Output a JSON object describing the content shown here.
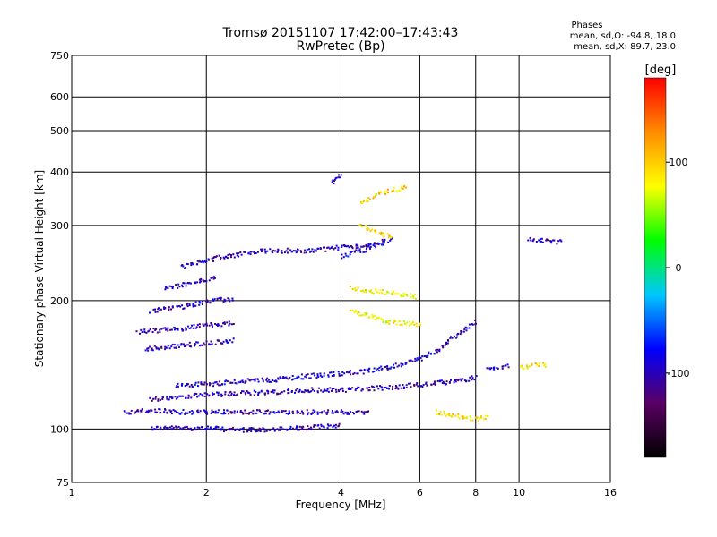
{
  "chart_data": {
    "type": "scatter",
    "title": "Tromsø 20151107 17:42:00–17:43:43",
    "subtitle": "RwPretec (Bp)",
    "xlabel": "Frequency [MHz]",
    "ylabel": "Stationary phase Virtual Height [km]",
    "x_scale": "log",
    "y_scale": "log",
    "xlim": [
      1,
      16
    ],
    "ylim": [
      75,
      750
    ],
    "x_ticks": [
      1,
      2,
      4,
      6,
      8,
      10,
      16
    ],
    "x_tick_labels": [
      "1",
      "2",
      "4",
      "6",
      "8",
      "10",
      "16"
    ],
    "y_ticks": [
      75,
      100,
      200,
      300,
      400,
      500,
      600,
      750
    ],
    "y_tick_labels": [
      "75",
      "100",
      "200",
      "300",
      "400",
      "500",
      "600",
      "750"
    ],
    "grid": true,
    "phase_info": {
      "heading": "Phases",
      "line_o": "mean, sd,O: -94.8, 18.0",
      "line_x": "mean, sd,X:  89.7, 23.0"
    },
    "colorbar": {
      "label": "[deg]",
      "range": [
        -180,
        180
      ],
      "ticks": [
        100,
        0,
        -100
      ],
      "tick_labels": [
        "100",
        "0",
        "-100"
      ],
      "stops": [
        "#000000",
        "#5a0064",
        "#0000ff",
        "#00c8ff",
        "#00ff00",
        "#ffff00",
        "#ff8c00",
        "#ff0000"
      ]
    },
    "traces": [
      {
        "phase": -100,
        "points": [
          [
            1.5,
            101
          ],
          [
            1.8,
            101
          ],
          [
            2.0,
            101
          ],
          [
            2.3,
            100
          ],
          [
            2.7,
            100
          ],
          [
            3.0,
            100.5
          ],
          [
            3.3,
            101
          ],
          [
            3.7,
            102
          ],
          [
            4.0,
            103
          ]
        ]
      },
      {
        "phase": -100,
        "points": [
          [
            1.3,
            110
          ],
          [
            1.5,
            111
          ],
          [
            1.8,
            110
          ],
          [
            2.0,
            110
          ],
          [
            2.3,
            110
          ],
          [
            2.8,
            110
          ],
          [
            3.2,
            110
          ],
          [
            3.8,
            110
          ],
          [
            4.2,
            110
          ],
          [
            4.6,
            110
          ]
        ]
      },
      {
        "phase": -100,
        "points": [
          [
            1.5,
            118
          ],
          [
            1.8,
            120
          ],
          [
            2.1,
            121
          ],
          [
            2.5,
            122
          ],
          [
            3.0,
            123
          ],
          [
            3.4,
            124
          ],
          [
            4.0,
            124
          ],
          [
            4.6,
            125
          ],
          [
            5.3,
            126
          ],
          [
            6.2,
            128
          ],
          [
            7.2,
            130
          ],
          [
            8.0,
            133
          ]
        ]
      },
      {
        "phase": -95,
        "points": [
          [
            1.7,
            127
          ],
          [
            2.0,
            128
          ],
          [
            2.4,
            130
          ],
          [
            2.8,
            131
          ],
          [
            3.2,
            133
          ],
          [
            3.8,
            135
          ],
          [
            4.5,
            137
          ],
          [
            5.2,
            141
          ],
          [
            6.0,
            147
          ],
          [
            6.6,
            155
          ],
          [
            7.0,
            163
          ],
          [
            7.5,
            172
          ],
          [
            8.0,
            180
          ]
        ]
      },
      {
        "phase": -100,
        "points": [
          [
            1.45,
            155
          ],
          [
            1.7,
            157
          ],
          [
            2.0,
            160
          ],
          [
            2.3,
            162
          ]
        ]
      },
      {
        "phase": -100,
        "points": [
          [
            1.4,
            170
          ],
          [
            1.7,
            172
          ],
          [
            2.0,
            176
          ],
          [
            2.3,
            178
          ]
        ]
      },
      {
        "phase": -100,
        "points": [
          [
            1.5,
            190
          ],
          [
            1.8,
            195
          ],
          [
            2.0,
            200
          ],
          [
            2.3,
            203
          ]
        ]
      },
      {
        "phase": -100,
        "points": [
          [
            1.6,
            215
          ],
          [
            1.9,
            222
          ],
          [
            2.1,
            228
          ]
        ]
      },
      {
        "phase": -100,
        "points": [
          [
            1.75,
            240
          ],
          [
            2.0,
            250
          ],
          [
            2.2,
            255
          ],
          [
            2.6,
            262
          ],
          [
            3.0,
            263
          ],
          [
            3.5,
            263
          ],
          [
            4.0,
            268
          ],
          [
            4.5,
            270
          ],
          [
            5.0,
            272
          ]
        ]
      },
      {
        "phase": -90,
        "points": [
          [
            4.0,
            255
          ],
          [
            4.4,
            262
          ],
          [
            4.8,
            272
          ],
          [
            5.2,
            282
          ]
        ]
      },
      {
        "phase": 95,
        "points": [
          [
            4.4,
            340
          ],
          [
            4.8,
            355
          ],
          [
            5.2,
            365
          ],
          [
            5.6,
            370
          ]
        ]
      },
      {
        "phase": 95,
        "points": [
          [
            4.4,
            300
          ],
          [
            4.8,
            290
          ],
          [
            5.2,
            282
          ]
        ]
      },
      {
        "phase": 85,
        "points": [
          [
            4.2,
            215
          ],
          [
            4.6,
            212
          ],
          [
            5.0,
            210
          ],
          [
            5.4,
            208
          ],
          [
            5.9,
            205
          ]
        ]
      },
      {
        "phase": 80,
        "points": [
          [
            4.2,
            190
          ],
          [
            4.6,
            185
          ],
          [
            5.0,
            180
          ],
          [
            5.5,
            178
          ],
          [
            6.0,
            176
          ]
        ]
      },
      {
        "phase": 90,
        "points": [
          [
            6.5,
            110
          ],
          [
            7.0,
            108
          ],
          [
            7.5,
            107
          ],
          [
            8.0,
            106
          ],
          [
            8.5,
            107
          ]
        ]
      },
      {
        "phase": 90,
        "points": [
          [
            10.0,
            140
          ],
          [
            10.5,
            141
          ],
          [
            11.0,
            142
          ],
          [
            11.5,
            142
          ]
        ]
      },
      {
        "phase": -100,
        "points": [
          [
            8.5,
            140
          ],
          [
            9.0,
            140
          ],
          [
            9.5,
            141
          ]
        ]
      },
      {
        "phase": -100,
        "points": [
          [
            10.5,
            280
          ],
          [
            11.5,
            278
          ],
          [
            12.5,
            275
          ]
        ]
      },
      {
        "phase": -100,
        "points": [
          [
            3.8,
            380
          ],
          [
            3.9,
            390
          ],
          [
            4.0,
            398
          ]
        ]
      }
    ]
  }
}
